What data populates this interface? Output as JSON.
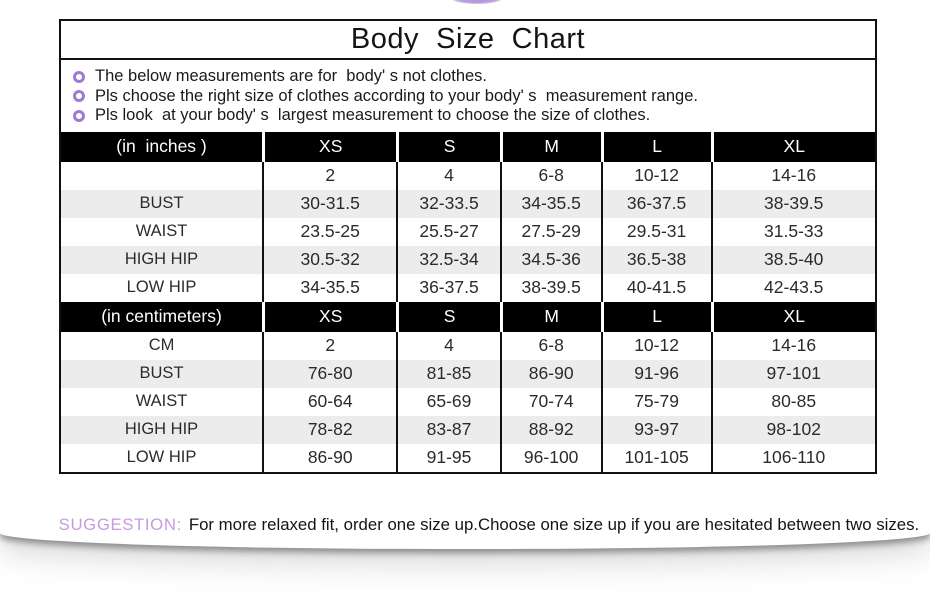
{
  "title": "Body  Size  Chart",
  "notes": [
    "The below measurements are for  body' s not clothes.",
    "Pls choose the right size of clothes according to your body' s  measurement range.",
    "Pls look  at your body' s  largest measurement to choose the size of clothes."
  ],
  "chart_data": {
    "type": "table",
    "sections": [
      {
        "header_label": "(in  inches )",
        "columns": [
          "XS",
          "S",
          "M",
          "L",
          "XL"
        ],
        "rows": [
          {
            "label": "",
            "values": [
              "2",
              "4",
              "6-8",
              "10-12",
              "14-16"
            ]
          },
          {
            "label": "BUST",
            "values": [
              "30-31.5",
              "32-33.5",
              "34-35.5",
              "36-37.5",
              "38-39.5"
            ]
          },
          {
            "label": "WAIST",
            "values": [
              "23.5-25",
              "25.5-27",
              "27.5-29",
              "29.5-31",
              "31.5-33"
            ]
          },
          {
            "label": "HIGH HIP",
            "values": [
              "30.5-32",
              "32.5-34",
              "34.5-36",
              "36.5-38",
              "38.5-40"
            ]
          },
          {
            "label": "LOW HIP",
            "values": [
              "34-35.5",
              "36-37.5",
              "38-39.5",
              "40-41.5",
              "42-43.5"
            ]
          }
        ]
      },
      {
        "header_label": "(in centimeters)",
        "columns": [
          "XS",
          "S",
          "M",
          "L",
          "XL"
        ],
        "rows": [
          {
            "label": "CM",
            "values": [
              "2",
              "4",
              "6-8",
              "10-12",
              "14-16"
            ]
          },
          {
            "label": "BUST",
            "values": [
              "76-80",
              "81-85",
              "86-90",
              "91-96",
              "97-101"
            ]
          },
          {
            "label": "WAIST",
            "values": [
              "60-64",
              "65-69",
              "70-74",
              "75-79",
              "80-85"
            ]
          },
          {
            "label": "HIGH HIP",
            "values": [
              "78-82",
              "83-87",
              "88-92",
              "93-97",
              "98-102"
            ]
          },
          {
            "label": "LOW HIP",
            "values": [
              "86-90",
              "91-95",
              "96-100",
              "101-105",
              "106-110"
            ]
          }
        ]
      }
    ]
  },
  "suggestion": {
    "label": "SUGGESTION:",
    "text": "For more relaxed fit, order one size up.Choose one size up if you are hesitated between two sizes."
  },
  "colors": {
    "header_bg": "#000000",
    "header_text": "#ffffff",
    "shaded_row": "#ececec",
    "bullet_ring": "#9c7bd4",
    "suggestion_label": "#c79be2",
    "border": "#111111"
  }
}
